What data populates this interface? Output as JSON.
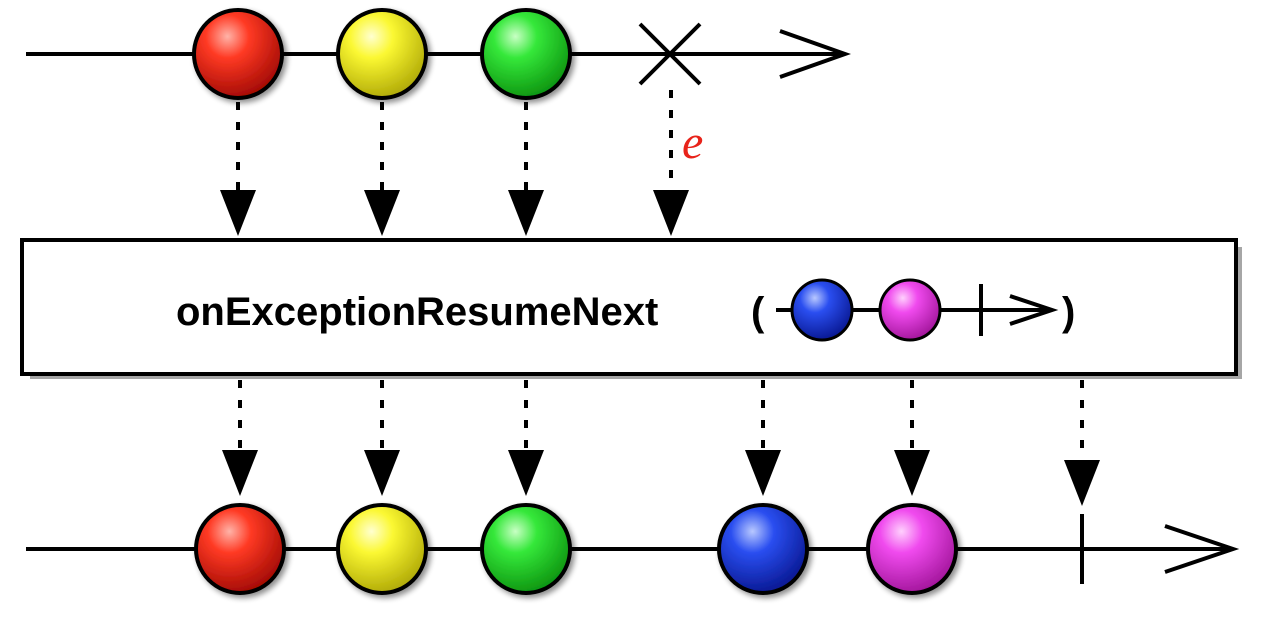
{
  "operator": {
    "name": "onExceptionResumeNext",
    "open_paren": "(",
    "close_paren": ")"
  },
  "error_label": "e",
  "colors": {
    "red": "#e8231a",
    "yellow": "#f4f21c",
    "green": "#27d92d",
    "blue": "#1a3de0",
    "magenta": "#e93ee6",
    "error_text": "#e8231a",
    "line": "#000000"
  },
  "source_stream": {
    "emissions": [
      "red",
      "yellow",
      "green"
    ],
    "terminates_with": "error"
  },
  "resume_stream": {
    "emissions": [
      "blue",
      "magenta"
    ],
    "terminates_with": "completion"
  },
  "output_stream": {
    "emissions": [
      "red",
      "yellow",
      "green",
      "blue",
      "magenta"
    ],
    "terminates_with": "completion"
  }
}
